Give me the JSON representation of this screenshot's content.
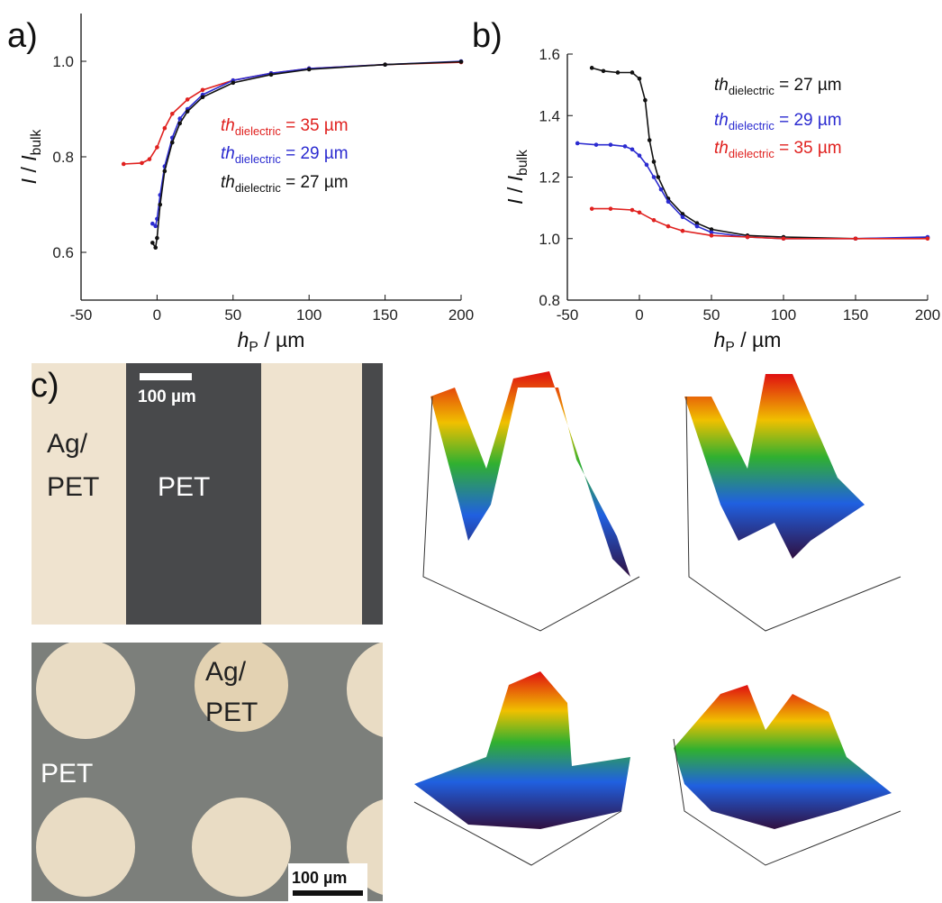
{
  "panel_labels": {
    "a": "a)",
    "b": "b)",
    "c": "c)"
  },
  "chart_data": [
    {
      "type": "line",
      "xlabel": [
        "h",
        "P",
        " / µm"
      ],
      "ylabel": [
        "I",
        " / ",
        "I",
        "bulk"
      ],
      "xlim": [
        -50,
        200
      ],
      "ylim": [
        0.5,
        1.1
      ],
      "xticks": [
        -50,
        0,
        50,
        100,
        150,
        200
      ],
      "yticks": [
        {
          "value": 0.6,
          "label": "0.6"
        },
        {
          "value": 0.8,
          "label": "0.8"
        },
        {
          "value": 1.0,
          "label": "1.0"
        }
      ],
      "series": [
        {
          "label": [
            "th",
            "dielectric",
            " = 35 µm"
          ],
          "color": "#e0211f",
          "x": [
            -22,
            -10,
            -5,
            0,
            5,
            10,
            20,
            30,
            50,
            75,
            100,
            150,
            200
          ],
          "values": [
            0.785,
            0.787,
            0.795,
            0.82,
            0.86,
            0.89,
            0.92,
            0.94,
            0.96,
            0.975,
            0.985,
            0.993,
            0.998
          ]
        },
        {
          "label": [
            "th",
            "dielectric",
            " = 29 µm"
          ],
          "color": "#2b2bd0",
          "x": [
            -3,
            -1,
            0,
            2,
            5,
            10,
            15,
            20,
            30,
            50,
            75,
            100,
            150,
            200
          ],
          "values": [
            0.66,
            0.655,
            0.67,
            0.72,
            0.78,
            0.84,
            0.88,
            0.9,
            0.93,
            0.96,
            0.975,
            0.985,
            0.993,
            1.0
          ]
        },
        {
          "label": [
            "th",
            "dielectric",
            " = 27 µm"
          ],
          "color": "#111111",
          "x": [
            -3,
            -1,
            0,
            2,
            5,
            10,
            15,
            20,
            30,
            50,
            75,
            100,
            150,
            200
          ],
          "values": [
            0.62,
            0.61,
            0.63,
            0.7,
            0.77,
            0.83,
            0.87,
            0.895,
            0.925,
            0.955,
            0.972,
            0.983,
            0.993,
            0.999
          ]
        }
      ]
    },
    {
      "type": "line",
      "xlabel": [
        "h",
        "P",
        " / µm"
      ],
      "ylabel": [
        "I",
        " / ",
        "I",
        "bulk"
      ],
      "xlim": [
        -50,
        200
      ],
      "ylim": [
        0.8,
        1.6
      ],
      "xticks": [
        -50,
        0,
        50,
        100,
        150,
        200
      ],
      "yticks": [
        {
          "value": 0.8,
          "label": "0.8"
        },
        {
          "value": 1.0,
          "label": "1.0"
        },
        {
          "value": 1.2,
          "label": "1.2"
        },
        {
          "value": 1.4,
          "label": "1.4"
        },
        {
          "value": 1.6,
          "label": "1.6"
        }
      ],
      "series": [
        {
          "label": [
            "th",
            "dielectric",
            " = 27 µm"
          ],
          "color": "#111111",
          "x": [
            -33,
            -25,
            -15,
            -5,
            0,
            4,
            7,
            10,
            13,
            20,
            30,
            40,
            50,
            75,
            100,
            150,
            200
          ],
          "values": [
            1.555,
            1.545,
            1.54,
            1.54,
            1.52,
            1.45,
            1.32,
            1.25,
            1.2,
            1.13,
            1.08,
            1.05,
            1.03,
            1.01,
            1.005,
            1.0,
            1.003
          ]
        },
        {
          "label": [
            "th",
            "dielectric",
            " = 29 µm"
          ],
          "color": "#2b2bd0",
          "x": [
            -43,
            -30,
            -20,
            -10,
            -5,
            0,
            5,
            10,
            15,
            20,
            30,
            40,
            50,
            75,
            100,
            150,
            200
          ],
          "values": [
            1.31,
            1.305,
            1.305,
            1.3,
            1.29,
            1.27,
            1.24,
            1.2,
            1.16,
            1.12,
            1.07,
            1.04,
            1.02,
            1.005,
            1.0,
            1.0,
            1.005
          ]
        },
        {
          "label": [
            "th",
            "dielectric",
            " = 35 µm"
          ],
          "color": "#e0211f",
          "x": [
            -33,
            -20,
            -5,
            0,
            10,
            20,
            30,
            50,
            75,
            100,
            150,
            200
          ],
          "values": [
            1.097,
            1.097,
            1.093,
            1.085,
            1.06,
            1.04,
            1.025,
            1.01,
            1.005,
            1.0,
            1.0,
            1.0
          ]
        }
      ]
    }
  ],
  "panel_c": {
    "top_scale_bar": "100 µm",
    "top_left_label": [
      "Ag/",
      "PET"
    ],
    "top_middle_label": "PET",
    "bottom_label_dot": [
      "Ag/",
      "PET"
    ],
    "bottom_label_bg": "PET",
    "bottom_scale_bar": "100 µm"
  }
}
